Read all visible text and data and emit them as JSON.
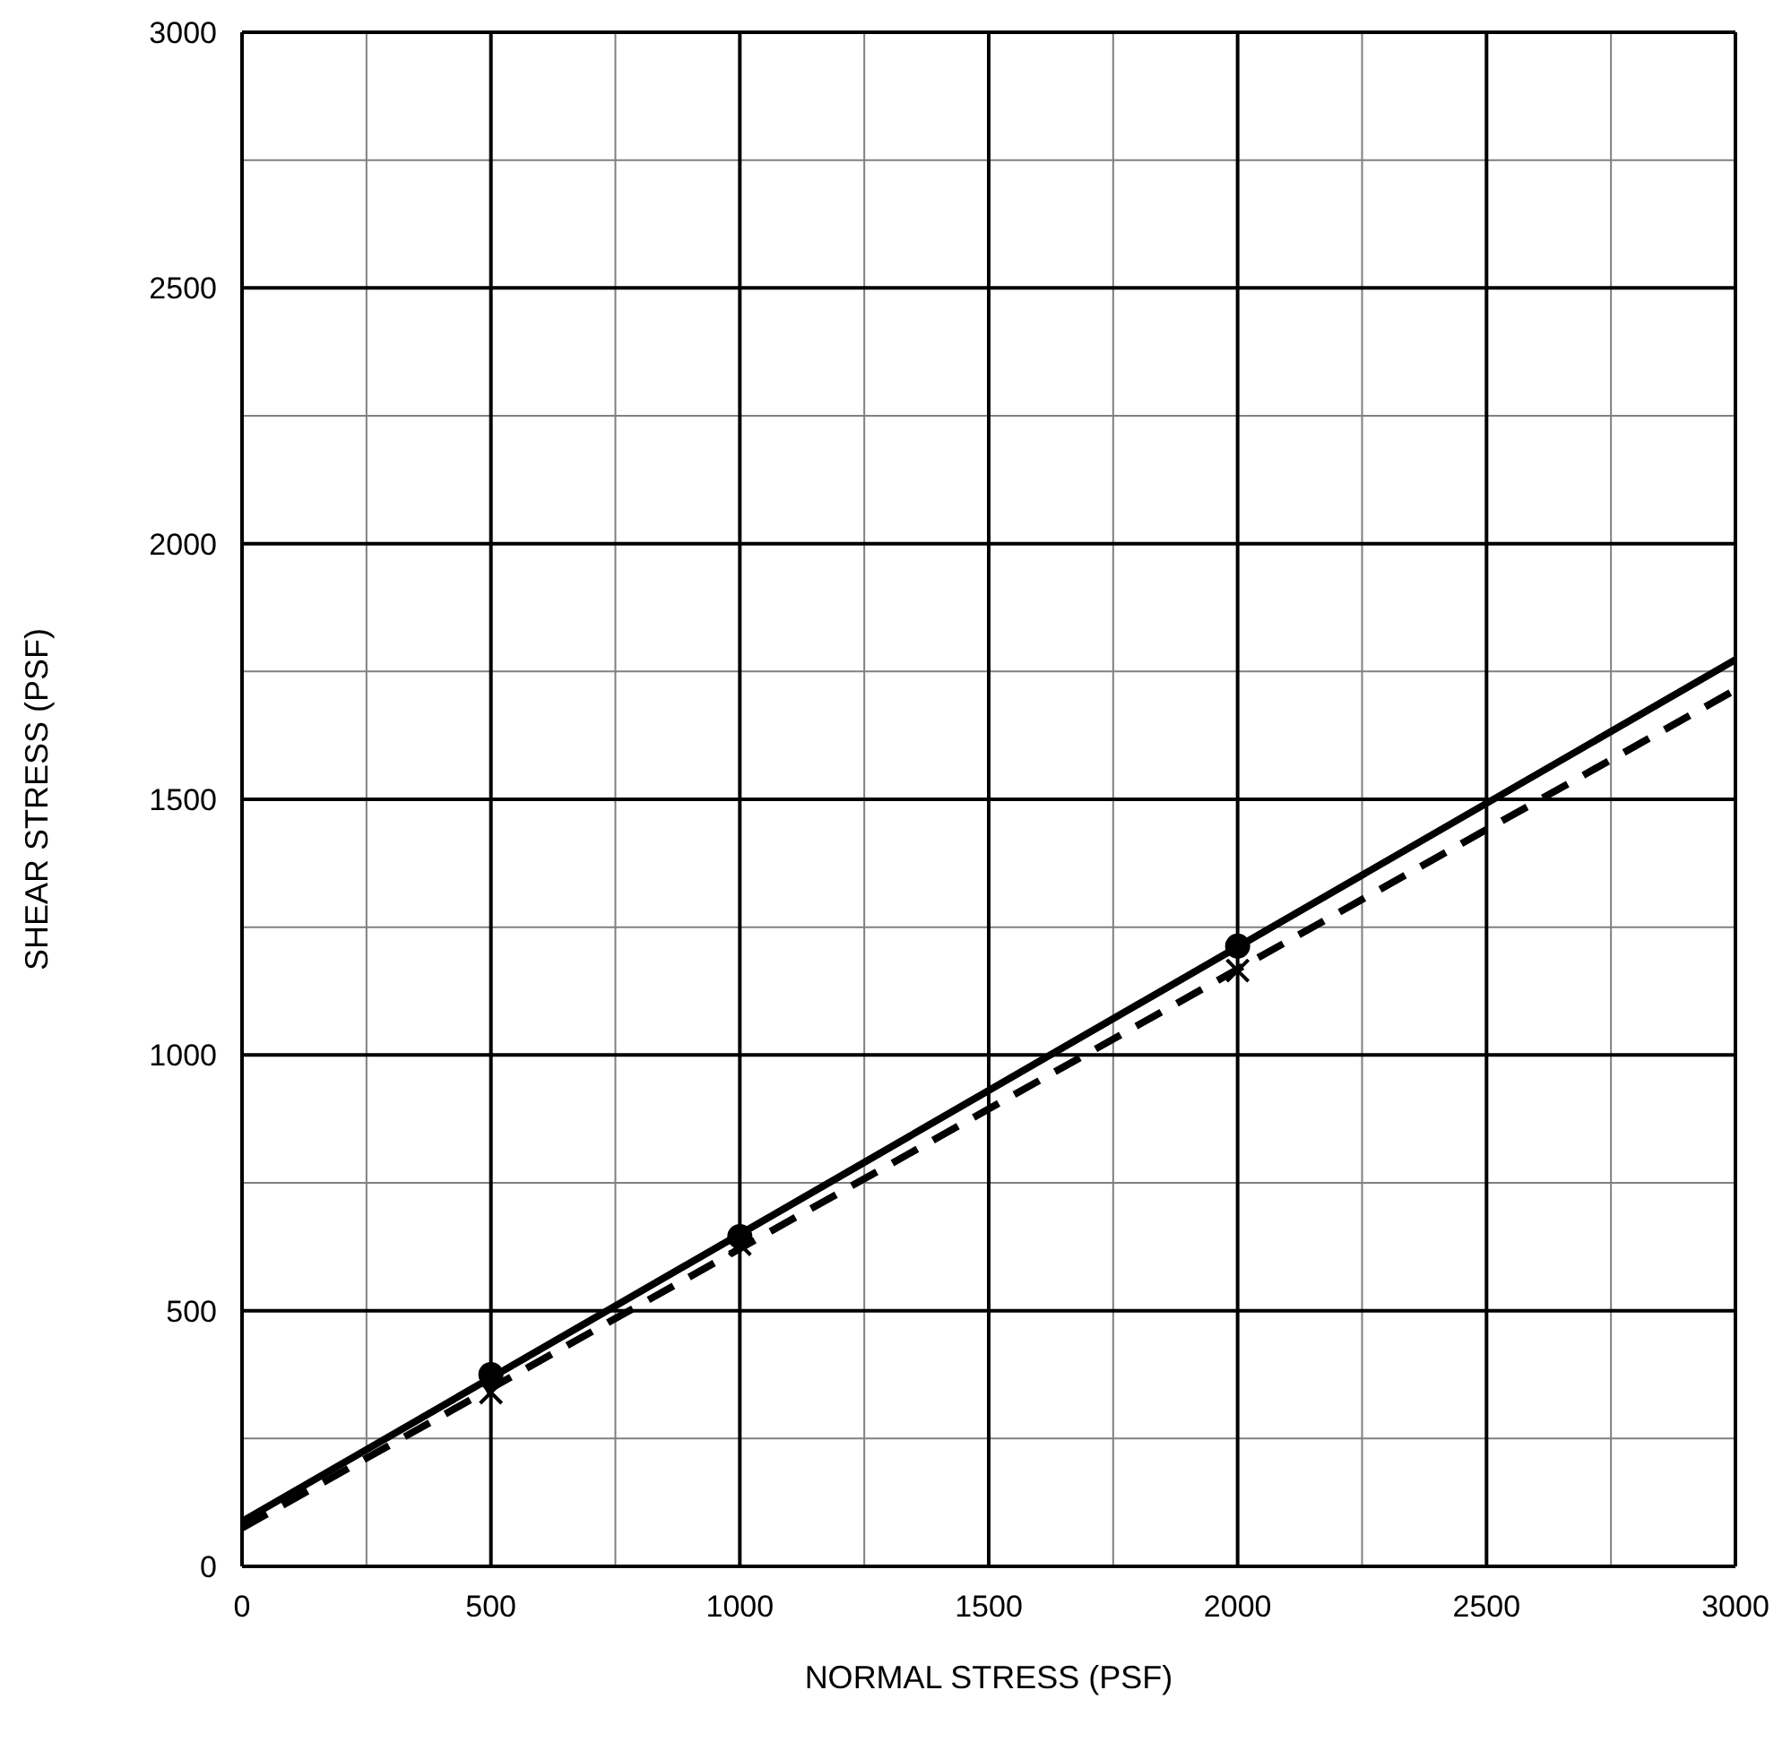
{
  "chart_data": {
    "type": "scatter",
    "xlabel": "NORMAL STRESS (PSF)",
    "ylabel": "SHEAR STRESS (PSF)",
    "xlim": [
      0,
      3000
    ],
    "ylim": [
      0,
      3000
    ],
    "xticks": [
      0,
      {
        "value": 250,
        "label": null
      },
      500,
      {
        "value": 750,
        "label": null
      },
      1000,
      {
        "value": 1250,
        "label": null
      },
      1500,
      {
        "value": 1750,
        "label": null
      },
      2000,
      {
        "value": 2250,
        "label": null
      },
      2500,
      {
        "value": 2750,
        "label": null
      },
      3000
    ],
    "yticks": [
      0,
      {
        "value": 250,
        "label": null
      },
      500,
      {
        "value": 750,
        "label": null
      },
      1000,
      {
        "value": 1250,
        "label": null
      },
      1500,
      {
        "value": 1750,
        "label": null
      },
      2000,
      {
        "value": 2250,
        "label": null
      },
      2500,
      {
        "value": 2750,
        "label": null
      },
      3000
    ],
    "grid": true,
    "legend": false,
    "series": [
      {
        "type": "line",
        "color": "#000000",
        "line_style": "solid",
        "marker": "none",
        "x": [
          0,
          3000
        ],
        "values": [
          88,
          1773
        ]
      },
      {
        "type": "line",
        "color": "#000000",
        "line_style": "dashed",
        "marker": "none",
        "x": [
          0,
          3000
        ],
        "values": [
          75,
          1714
        ]
      },
      {
        "color": "#000000",
        "marker": "circle",
        "x": [
          500,
          1000,
          2000
        ],
        "values": [
          375,
          645,
          1213
        ]
      },
      {
        "color": "#000000",
        "marker": "cross",
        "x": [
          500,
          1000,
          2000
        ],
        "values": [
          340,
          630,
          1165
        ]
      }
    ]
  }
}
